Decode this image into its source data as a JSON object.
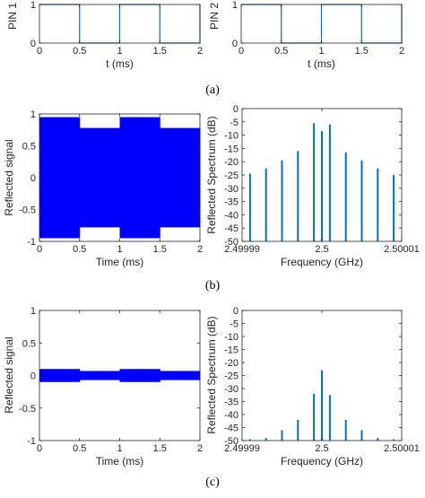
{
  "sublabels": [
    "(a)",
    "(b)",
    "(c)"
  ],
  "colors": {
    "trace": "#0072BD",
    "fill": "#0000FF",
    "axis": "#262626"
  },
  "chart_data": [
    {
      "type": "line",
      "xlabel": "t (ms)",
      "ylabel": "PIN 1",
      "xlim": [
        0,
        2
      ],
      "ylim": [
        0,
        1
      ],
      "xticks": [
        "0",
        "0.5",
        "1",
        "1.5",
        "2"
      ],
      "yticks": [
        "0",
        "1"
      ],
      "series": [
        {
          "x": [
            0,
            0.5,
            0.5,
            1,
            1,
            1.5,
            1.5,
            2,
            2
          ],
          "y": [
            1,
            1,
            0,
            0,
            1,
            1,
            0,
            0,
            1
          ]
        }
      ]
    },
    {
      "type": "line",
      "xlabel": "t (ms)",
      "ylabel": "PIN 2",
      "xlim": [
        0,
        2
      ],
      "ylim": [
        0,
        1
      ],
      "xticks": [
        "0",
        "0.5",
        "1",
        "1.5",
        "2"
      ],
      "yticks": [
        "0",
        "1"
      ],
      "series": [
        {
          "x": [
            0,
            0.5,
            0.5,
            1,
            1,
            1.5,
            1.5,
            2,
            2
          ],
          "y": [
            1,
            1,
            0,
            0,
            1,
            1,
            0,
            0,
            1
          ]
        }
      ]
    },
    {
      "type": "area",
      "xlabel": "Time (ms)",
      "ylabel": "Reflected signal",
      "xlim": [
        0,
        2
      ],
      "ylim": [
        -1,
        1
      ],
      "xticks": [
        "0",
        "0.5",
        "1",
        "1.5",
        "2"
      ],
      "yticks": [
        "-1",
        "-0.5",
        "0",
        "0.5",
        "1"
      ],
      "envelope": [
        {
          "x": [
            0,
            0.5
          ],
          "amplitude": 0.95
        },
        {
          "x": [
            0.5,
            1
          ],
          "amplitude": 0.78
        },
        {
          "x": [
            1,
            1.5
          ],
          "amplitude": 0.95
        },
        {
          "x": [
            1.5,
            2
          ],
          "amplitude": 0.78
        }
      ]
    },
    {
      "type": "bar",
      "xlabel": "Frequency (GHz)",
      "ylabel": "Reflected Spectrum (dB)",
      "xlim": [
        2.49999,
        2.50001
      ],
      "ylim": [
        -50,
        0
      ],
      "xticks": [
        "2.49999",
        "2.5",
        "2.50001"
      ],
      "yticks": [
        "-50",
        "-45",
        "-40",
        "-35",
        "-30",
        "-25",
        "-20",
        "-15",
        "-10",
        "-5",
        "0"
      ],
      "x": [
        2.499991,
        2.499993,
        2.499995,
        2.499997,
        2.499999,
        2.5,
        2.500001,
        2.500003,
        2.500005,
        2.500007,
        2.500009
      ],
      "values": [
        -24.5,
        -22.5,
        -19.5,
        -16,
        -5.5,
        -8.5,
        -6,
        -16.5,
        -19.5,
        -22.5,
        -25
      ]
    },
    {
      "type": "area",
      "xlabel": "Time (ms)",
      "ylabel": "Reflected signal",
      "xlim": [
        0,
        2
      ],
      "ylim": [
        -1,
        1
      ],
      "xticks": [
        "0",
        "0.5",
        "1",
        "1.5",
        "2"
      ],
      "yticks": [
        "-1",
        "-0.5",
        "0",
        "0.5",
        "1"
      ],
      "envelope": [
        {
          "x": [
            0,
            0.5
          ],
          "amplitude": 0.1
        },
        {
          "x": [
            0.5,
            1
          ],
          "amplitude": 0.07
        },
        {
          "x": [
            1,
            1.5
          ],
          "amplitude": 0.1
        },
        {
          "x": [
            1.5,
            2
          ],
          "amplitude": 0.07
        }
      ]
    },
    {
      "type": "bar",
      "xlabel": "Frequency (GHz)",
      "ylabel": "Reflected Spectrum (dB)",
      "xlim": [
        2.49999,
        2.50001
      ],
      "ylim": [
        -50,
        0
      ],
      "xticks": [
        "2.49999",
        "2.5",
        "2.50001"
      ],
      "yticks": [
        "-50",
        "-45",
        "-40",
        "-35",
        "-30",
        "-25",
        "-20",
        "-15",
        "-10",
        "-5",
        "0"
      ],
      "x": [
        2.499991,
        2.499993,
        2.499995,
        2.499997,
        2.499999,
        2.5,
        2.500001,
        2.500003,
        2.500005,
        2.500007,
        2.500009
      ],
      "values": [
        -49.5,
        -49,
        -46,
        -42,
        -32,
        -23,
        -32.5,
        -42,
        -46,
        -49,
        -49.5
      ]
    }
  ]
}
